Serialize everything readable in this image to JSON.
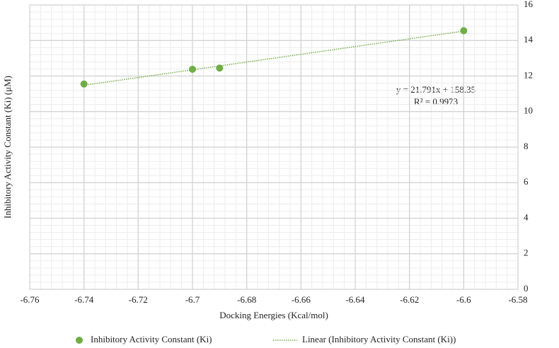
{
  "chart_data": {
    "type": "scatter",
    "xlabel": "Docking Energies (Kcal/mol)",
    "ylabel": "Inhibitory Activity Constant (Ki) (μM)",
    "series": [
      {
        "name": "Inhibitory Activity Constant (Ki)",
        "color": "#70ad47",
        "x": [
          -6.74,
          -6.7,
          -6.69,
          -6.6
        ],
        "values": [
          11.55,
          12.38,
          12.45,
          14.55
        ]
      }
    ],
    "trendline": {
      "name": "Linear (Inhibitory Activity Constant (Ki))",
      "color": "#70ad47",
      "x": [
        -6.74,
        -6.6
      ],
      "values": [
        11.48,
        14.53
      ]
    },
    "annotations": [
      "y = 21.791x + 158.35",
      "R² = 0.9973"
    ],
    "xlim": [
      -6.76,
      -6.58
    ],
    "xticks": [
      -6.76,
      -6.74,
      -6.72,
      -6.7,
      -6.68,
      -6.66,
      -6.64,
      -6.62,
      -6.6,
      -6.58
    ],
    "ylim": [
      0,
      16
    ],
    "yticks": [
      0,
      2,
      4,
      6,
      8,
      10,
      12,
      14,
      16
    ],
    "grid": true,
    "minor_grid": true,
    "legend": "bottom"
  }
}
